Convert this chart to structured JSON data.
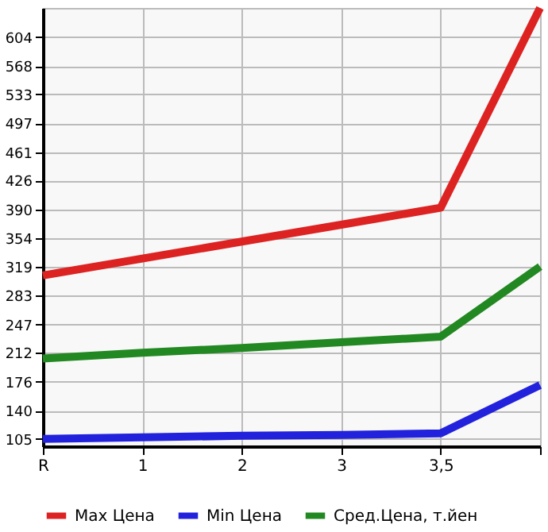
{
  "chart_data": {
    "type": "line",
    "categories": [
      "R",
      "1",
      "2",
      "3",
      "3,5",
      null
    ],
    "series": [
      {
        "name": "Max Цена",
        "color": "#dd2222",
        "values": [
          308,
          329,
          350,
          371,
          392,
          640
        ]
      },
      {
        "name": "Min Цена",
        "color": "#2222dd",
        "values": [
          105,
          107,
          109,
          110,
          112,
          172
        ]
      },
      {
        "name": "Сред.Цена, т.йен",
        "color": "#228822",
        "values": [
          205,
          212,
          218,
          225,
          232,
          319
        ]
      }
    ],
    "ylim": [
      96,
      640
    ],
    "yticks": [
      105,
      140,
      176,
      212,
      247,
      283,
      319,
      354,
      390,
      426,
      461,
      497,
      533,
      568,
      604
    ],
    "grid": true,
    "legend": "bottom",
    "marker": "none",
    "line_style": "solid"
  }
}
